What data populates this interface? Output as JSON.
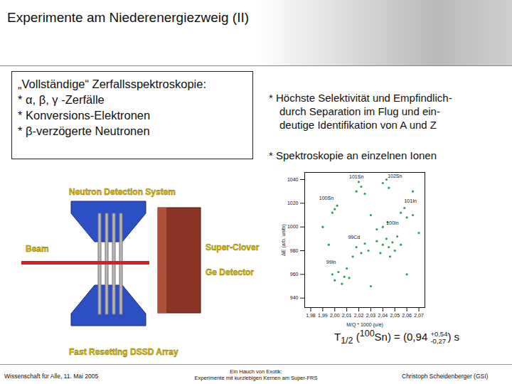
{
  "slide": {
    "title": "Experimente am Niederenergiezweig (II)",
    "box": [
      "„Vollständige“ Zerfallsspektroskopie:",
      "* α, β, γ -Zerfälle",
      "* Konversions-Elektronen",
      "* β-verzögerte Neutronen"
    ],
    "right_text": [
      [
        "* Höchste Selektivität und Empfindlich-",
        "durch Separation im Flug und ein-",
        "deutige Identifikation von A und Z"
      ],
      [
        "* Spektroskopie an einzelnen Ionen"
      ]
    ]
  },
  "diagram": {
    "neutron": "Neutron Detection System",
    "beam": "Beam",
    "clover": "Super-Clover",
    "ge": "Ge Detector",
    "dssd": "Fast Resetting DSSD Array"
  },
  "chart_data": {
    "type": "scatter",
    "x_label": "M/Q * 1000 (u/e)",
    "y_label": "ΔE (arb. units)",
    "xlim": [
      1.975,
      2.075
    ],
    "xticks": [
      {
        "value": 1.98,
        "label": "1,98"
      },
      {
        "value": 1.99,
        "label": "1,99"
      },
      {
        "value": 2.0,
        "label": "2,00"
      },
      {
        "value": 2.01,
        "label": "2,01"
      },
      {
        "value": 2.02,
        "label": "2,02"
      },
      {
        "value": 2.03,
        "label": "2,03"
      },
      {
        "value": 2.04,
        "label": "2,04"
      },
      {
        "value": 2.05,
        "label": "2,05"
      },
      {
        "value": 2.06,
        "label": "2,06"
      },
      {
        "value": 2.07,
        "label": "2,07"
      }
    ],
    "ylim": [
      932,
      1046
    ],
    "yticks": [
      940,
      960,
      980,
      1000,
      1020,
      1040
    ],
    "color": "#2e9e5b",
    "x": [
      2.0,
      2.002,
      1.998,
      2.018,
      2.022,
      2.025,
      2.02,
      2.04,
      2.045,
      2.043,
      2.055,
      2.06,
      2.058,
      2.065,
      2.04,
      2.035,
      2.044,
      2.04,
      2.045,
      2.048,
      2.043,
      2.05,
      2.038,
      2.052,
      2.046,
      2.055,
      2.035,
      2.018,
      2.022,
      2.025,
      2.015,
      2.028,
      2.003,
      2.008,
      2.0,
      2.01,
      2.006,
      1.998,
      2.012,
      1.99,
      2.06,
      2.03,
      1.995,
      2.065,
      2.07,
      2.03
    ],
    "values": [
      1015,
      1018,
      1012,
      1030,
      1034,
      1028,
      1038,
      1037,
      1033,
      1040,
      1012,
      1008,
      1016,
      1010,
      1000,
      998,
      1004,
      985,
      983,
      987,
      990,
      980,
      978,
      992,
      975,
      985,
      988,
      983,
      978,
      986,
      975,
      980,
      962,
      958,
      955,
      965,
      952,
      960,
      957,
      1000,
      960,
      950,
      985,
      1030,
      995,
      1010
    ],
    "annotations": [
      {
        "text": "100Sn",
        "x": 1.993,
        "y": 1024
      },
      {
        "text": "101Sn",
        "x": 2.018,
        "y": 1042
      },
      {
        "text": "102Sn",
        "x": 2.05,
        "y": 1043
      },
      {
        "text": "101In",
        "x": 2.063,
        "y": 1022
      },
      {
        "text": "100In",
        "x": 2.048,
        "y": 1003
      },
      {
        "text": "99Cd",
        "x": 2.016,
        "y": 991
      },
      {
        "text": "99In",
        "x": 1.997,
        "y": 970
      }
    ]
  },
  "caption": {
    "symbol": "T",
    "subscript": "1/2",
    "open": "(",
    "mass": "100",
    "rest": "Sn) = (0,94",
    "plus": "+0,54",
    "minus": "-0,27",
    "close": ") s"
  },
  "footer": {
    "left": "Wissenschaft für Alle, 11. Mai 2005",
    "center": [
      "Ein Hauch von Exotik:",
      "Experimente mit kurzlebigen Kernen am Super-FRS"
    ],
    "right": "Christoph Scheidenberger (GSI)"
  }
}
